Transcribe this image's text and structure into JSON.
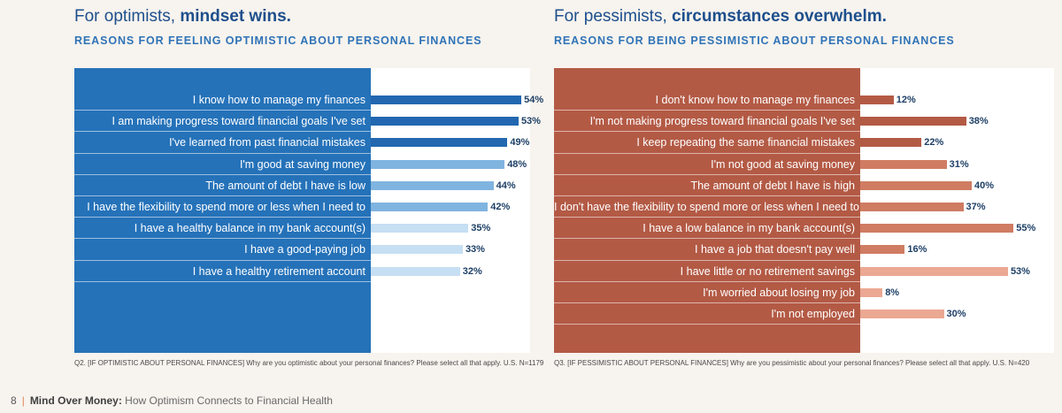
{
  "left": {
    "heading_plain": "For optimists, ",
    "heading_bold": "mindset wins.",
    "subheading": "REASONS FOR FEELING OPTIMISTIC ABOUT PERSONAL FINANCES",
    "footnote": "Q2. [IF OPTIMISTIC ABOUT PERSONAL FINANCES] Why are you optimistic about your personal finances? Please select all that apply. U.S. N=1179"
  },
  "right": {
    "heading_plain": "For pessimists, ",
    "heading_bold": "circumstances overwhelm.",
    "subheading": "REASONS FOR BEING PESSIMISTIC ABOUT PERSONAL FINANCES",
    "footnote": "Q3. [IF PESSIMISTIC ABOUT PERSONAL FINANCES] Why are you pessimistic about your personal finances? Please select all that apply. U.S. N=420"
  },
  "footer": {
    "page_number": "8",
    "title_bold": "Mind Over Money:",
    "title_rest": " How Optimism Connects to Financial Health"
  },
  "colors": {
    "optimist_dark": "#2267b0",
    "optimist_mid": "#80b4e0",
    "optimist_light": "#c6dff3",
    "pessimist_dark": "#b35a45",
    "pessimist_mid": "#cf7c63",
    "pessimist_light": "#eba893"
  },
  "chart_data": [
    {
      "type": "bar",
      "orientation": "horizontal",
      "title": "REASONS FOR FEELING OPTIMISTIC ABOUT PERSONAL FINANCES",
      "categories": [
        "I know how to manage my finances",
        "I am making progress toward financial goals I've set",
        "I've learned from past financial mistakes",
        "I'm good at saving money",
        "The amount of debt I have is low",
        "I have the flexibility to spend more or less when I need to",
        "I have a healthy balance in my bank account(s)",
        "I have a good-paying job",
        "I have a healthy retirement account"
      ],
      "values": [
        54,
        53,
        49,
        48,
        44,
        42,
        35,
        33,
        32
      ],
      "labels": [
        "54%",
        "53%",
        "49%",
        "48%",
        "44%",
        "42%",
        "35%",
        "33%",
        "32%"
      ],
      "shade": [
        "dark",
        "dark",
        "dark",
        "mid",
        "mid",
        "mid",
        "light",
        "light",
        "light"
      ],
      "unit": "%"
    },
    {
      "type": "bar",
      "orientation": "horizontal",
      "title": "REASONS FOR BEING PESSIMISTIC ABOUT PERSONAL FINANCES",
      "categories": [
        "I don't know how to manage my finances",
        "I'm not making progress toward financial goals I've set",
        "I keep repeating the same financial mistakes",
        "I'm not good at saving money",
        "The amount of debt I have is high",
        "I don't have the flexibility to spend more or less when I need to",
        "I have a low balance in my bank account(s)",
        "I have a job that doesn't pay well",
        "I have little or no retirement savings",
        "I'm worried about losing my job",
        "I'm not employed"
      ],
      "values": [
        12,
        38,
        22,
        31,
        40,
        37,
        55,
        16,
        53,
        8,
        30
      ],
      "labels": [
        "12%",
        "38%",
        "22%",
        "31%",
        "40%",
        "37%",
        "55%",
        "16%",
        "53%",
        "8%",
        "30%"
      ],
      "shade": [
        "dark",
        "dark",
        "dark",
        "mid",
        "mid",
        "mid",
        "mid",
        "mid",
        "light",
        "light",
        "light"
      ],
      "unit": "%"
    }
  ]
}
